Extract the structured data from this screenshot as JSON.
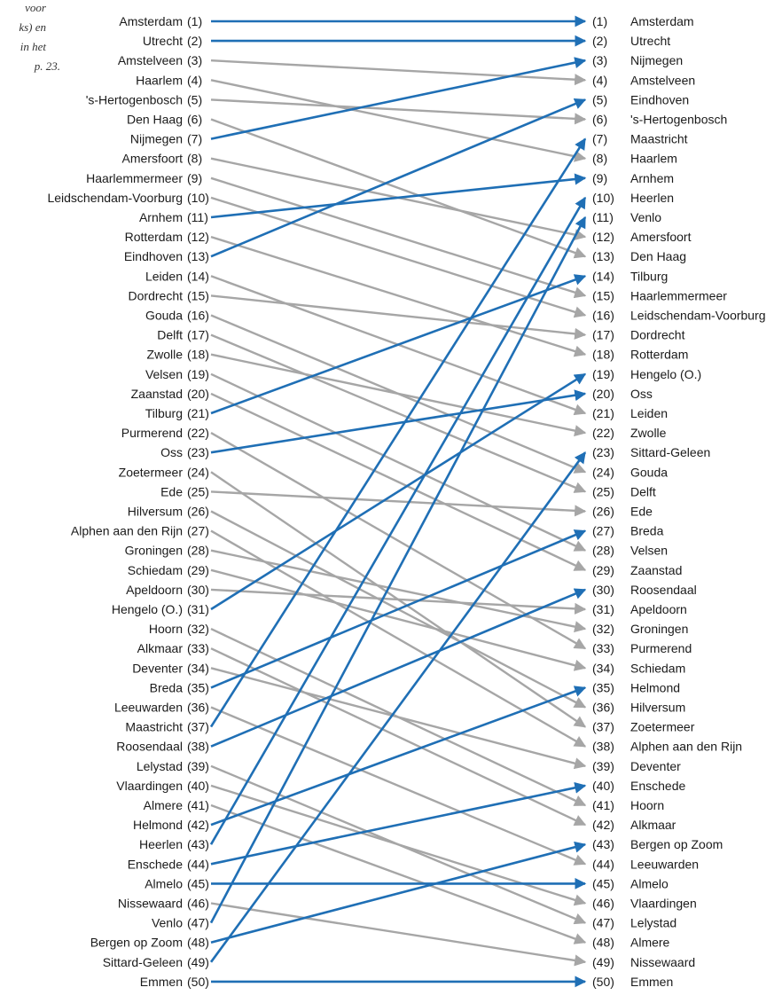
{
  "caption_fragment": {
    "lines": [
      "voor",
      "ks) en",
      "in het",
      "p. 23."
    ]
  },
  "colors": {
    "gray_arrow": "#a6a6a6",
    "blue_arrow": "#1f6fb5",
    "text": "#1a1a1a"
  },
  "left_column": [
    {
      "rank": "(1)",
      "name": "Amsterdam",
      "to": 1
    },
    {
      "rank": "(2)",
      "name": "Utrecht",
      "to": 2
    },
    {
      "rank": "(3)",
      "name": "Amstelveen",
      "to": 4
    },
    {
      "rank": "(4)",
      "name": "Haarlem",
      "to": 8
    },
    {
      "rank": "(5)",
      "name": "'s-Hertogenbosch",
      "to": 6
    },
    {
      "rank": "(6)",
      "name": "Den Haag",
      "to": 13
    },
    {
      "rank": "(7)",
      "name": "Nijmegen",
      "to": 3
    },
    {
      "rank": "(8)",
      "name": "Amersfoort",
      "to": 12
    },
    {
      "rank": "(9)",
      "name": "Haarlemmermeer",
      "to": 15
    },
    {
      "rank": "(10)",
      "name": "Leidschendam-Voorburg",
      "to": 16
    },
    {
      "rank": "(11)",
      "name": "Arnhem",
      "to": 9
    },
    {
      "rank": "(12)",
      "name": "Rotterdam",
      "to": 18
    },
    {
      "rank": "(13)",
      "name": "Eindhoven",
      "to": 5
    },
    {
      "rank": "(14)",
      "name": "Leiden",
      "to": 21
    },
    {
      "rank": "(15)",
      "name": "Dordrecht",
      "to": 17
    },
    {
      "rank": "(16)",
      "name": "Gouda",
      "to": 24
    },
    {
      "rank": "(17)",
      "name": "Delft",
      "to": 25
    },
    {
      "rank": "(18)",
      "name": "Zwolle",
      "to": 22
    },
    {
      "rank": "(19)",
      "name": "Velsen",
      "to": 28
    },
    {
      "rank": "(20)",
      "name": "Zaanstad",
      "to": 29
    },
    {
      "rank": "(21)",
      "name": "Tilburg",
      "to": 14
    },
    {
      "rank": "(22)",
      "name": "Purmerend",
      "to": 33
    },
    {
      "rank": "(23)",
      "name": "Oss",
      "to": 20
    },
    {
      "rank": "(24)",
      "name": "Zoetermeer",
      "to": 37
    },
    {
      "rank": "(25)",
      "name": "Ede",
      "to": 26
    },
    {
      "rank": "(26)",
      "name": "Hilversum",
      "to": 36
    },
    {
      "rank": "(27)",
      "name": "Alphen aan den Rijn",
      "to": 38
    },
    {
      "rank": "(28)",
      "name": "Groningen",
      "to": 32
    },
    {
      "rank": "(29)",
      "name": "Schiedam",
      "to": 34
    },
    {
      "rank": "(30)",
      "name": "Apeldoorn",
      "to": 31
    },
    {
      "rank": "(31)",
      "name": "Hengelo (O.)",
      "to": 19
    },
    {
      "rank": "(32)",
      "name": "Hoorn",
      "to": 41
    },
    {
      "rank": "(33)",
      "name": "Alkmaar",
      "to": 42
    },
    {
      "rank": "(34)",
      "name": "Deventer",
      "to": 39
    },
    {
      "rank": "(35)",
      "name": "Breda",
      "to": 27
    },
    {
      "rank": "(36)",
      "name": "Leeuwarden",
      "to": 44
    },
    {
      "rank": "(37)",
      "name": "Maastricht",
      "to": 7
    },
    {
      "rank": "(38)",
      "name": "Roosendaal",
      "to": 30
    },
    {
      "rank": "(39)",
      "name": "Lelystad",
      "to": 47
    },
    {
      "rank": "(40)",
      "name": "Vlaardingen",
      "to": 46
    },
    {
      "rank": "(41)",
      "name": "Almere",
      "to": 48
    },
    {
      "rank": "(42)",
      "name": "Helmond",
      "to": 35
    },
    {
      "rank": "(43)",
      "name": "Heerlen",
      "to": 10
    },
    {
      "rank": "(44)",
      "name": "Enschede",
      "to": 40
    },
    {
      "rank": "(45)",
      "name": "Almelo",
      "to": 45
    },
    {
      "rank": "(46)",
      "name": "Nissewaard",
      "to": 49
    },
    {
      "rank": "(47)",
      "name": "Venlo",
      "to": 11
    },
    {
      "rank": "(48)",
      "name": "Bergen op Zoom",
      "to": 43
    },
    {
      "rank": "(49)",
      "name": "Sittard-Geleen",
      "to": 23
    },
    {
      "rank": "(50)",
      "name": "Emmen",
      "to": 50
    }
  ],
  "right_column": [
    {
      "rank": "(1)",
      "name": "Amsterdam"
    },
    {
      "rank": "(2)",
      "name": "Utrecht"
    },
    {
      "rank": "(3)",
      "name": "Nijmegen"
    },
    {
      "rank": "(4)",
      "name": "Amstelveen"
    },
    {
      "rank": "(5)",
      "name": "Eindhoven"
    },
    {
      "rank": "(6)",
      "name": "'s-Hertogenbosch"
    },
    {
      "rank": "(7)",
      "name": "Maastricht"
    },
    {
      "rank": "(8)",
      "name": "Haarlem"
    },
    {
      "rank": "(9)",
      "name": "Arnhem"
    },
    {
      "rank": "(10)",
      "name": "Heerlen"
    },
    {
      "rank": "(11)",
      "name": "Venlo"
    },
    {
      "rank": "(12)",
      "name": "Amersfoort"
    },
    {
      "rank": "(13)",
      "name": "Den Haag"
    },
    {
      "rank": "(14)",
      "name": "Tilburg"
    },
    {
      "rank": "(15)",
      "name": "Haarlemmermeer"
    },
    {
      "rank": "(16)",
      "name": "Leidschendam-Voorburg"
    },
    {
      "rank": "(17)",
      "name": "Dordrecht"
    },
    {
      "rank": "(18)",
      "name": "Rotterdam"
    },
    {
      "rank": "(19)",
      "name": "Hengelo (O.)"
    },
    {
      "rank": "(20)",
      "name": "Oss"
    },
    {
      "rank": "(21)",
      "name": "Leiden"
    },
    {
      "rank": "(22)",
      "name": "Zwolle"
    },
    {
      "rank": "(23)",
      "name": "Sittard-Geleen"
    },
    {
      "rank": "(24)",
      "name": "Gouda"
    },
    {
      "rank": "(25)",
      "name": "Delft"
    },
    {
      "rank": "(26)",
      "name": "Ede"
    },
    {
      "rank": "(27)",
      "name": "Breda"
    },
    {
      "rank": "(28)",
      "name": "Velsen"
    },
    {
      "rank": "(29)",
      "name": "Zaanstad"
    },
    {
      "rank": "(30)",
      "name": "Roosendaal"
    },
    {
      "rank": "(31)",
      "name": "Apeldoorn"
    },
    {
      "rank": "(32)",
      "name": "Groningen"
    },
    {
      "rank": "(33)",
      "name": "Purmerend"
    },
    {
      "rank": "(34)",
      "name": "Schiedam"
    },
    {
      "rank": "(35)",
      "name": "Helmond"
    },
    {
      "rank": "(36)",
      "name": "Hilversum"
    },
    {
      "rank": "(37)",
      "name": "Zoetermeer"
    },
    {
      "rank": "(38)",
      "name": "Alphen aan den Rijn"
    },
    {
      "rank": "(39)",
      "name": "Deventer"
    },
    {
      "rank": "(40)",
      "name": "Enschede"
    },
    {
      "rank": "(41)",
      "name": "Hoorn"
    },
    {
      "rank": "(42)",
      "name": "Alkmaar"
    },
    {
      "rank": "(43)",
      "name": "Bergen op Zoom"
    },
    {
      "rank": "(44)",
      "name": "Leeuwarden"
    },
    {
      "rank": "(45)",
      "name": "Almelo"
    },
    {
      "rank": "(46)",
      "name": "Vlaardingen"
    },
    {
      "rank": "(47)",
      "name": "Lelystad"
    },
    {
      "rank": "(48)",
      "name": "Almere"
    },
    {
      "rank": "(49)",
      "name": "Nissewaard"
    },
    {
      "rank": "(50)",
      "name": "Emmen"
    }
  ]
}
